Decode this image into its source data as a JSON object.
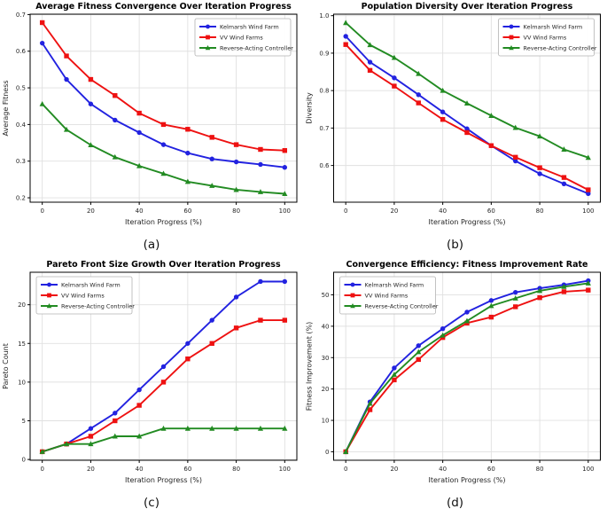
{
  "style": {
    "background": "#ffffff",
    "grid_color": "#e0e0e0",
    "spine_color": "#000000",
    "tick_text_color": "#262626",
    "title_color": "#000000",
    "legend_border": "#b3b3b3",
    "legend_background": "#ffffff"
  },
  "series_colors": {
    "kelmarsh": "#2222e0",
    "vv": "#ee1111",
    "reverse_acting": "#228b22"
  },
  "chart_data": [
    {
      "type": "line",
      "caption": "(a)",
      "title": "Average Fitness Convergence Over Iteration Progress",
      "xlabel": "Iteration Progress (%)",
      "ylabel": "Average Fitness",
      "xlim": [
        -5,
        105
      ],
      "ylim": [
        0.188,
        0.701
      ],
      "xticks": [
        0,
        20,
        40,
        60,
        80,
        100
      ],
      "xtick_labels": [
        "0",
        "20",
        "40",
        "60",
        "80",
        "100"
      ],
      "yticks": [
        0.2,
        0.3,
        0.4,
        0.5,
        0.6,
        0.7
      ],
      "ytick_labels": [
        "0.2",
        "0.3",
        "0.4",
        "0.5",
        "0.6",
        "0.7"
      ],
      "grid": true,
      "legend_position": "upper-right",
      "x": [
        0,
        10,
        20,
        30,
        40,
        50,
        60,
        70,
        80,
        90,
        100
      ],
      "series": [
        {
          "name": "Kelmarsh Wind Farm",
          "color": "#2222e0",
          "marker": "circle",
          "values": [
            0.622,
            0.523,
            0.456,
            0.412,
            0.378,
            0.345,
            0.322,
            0.306,
            0.298,
            0.291,
            0.283
          ]
        },
        {
          "name": "VV Wind Farms",
          "color": "#ee1111",
          "marker": "square",
          "values": [
            0.678,
            0.587,
            0.523,
            0.479,
            0.431,
            0.4,
            0.387,
            0.365,
            0.345,
            0.332,
            0.329
          ]
        },
        {
          "name": "Reverse-Acting Controller",
          "color": "#228b22",
          "marker": "triangle",
          "values": [
            0.456,
            0.386,
            0.344,
            0.311,
            0.287,
            0.266,
            0.244,
            0.233,
            0.222,
            0.216,
            0.211
          ]
        }
      ]
    },
    {
      "type": "line",
      "caption": "(b)",
      "title": "Population Diversity Over Iteration Progress",
      "xlabel": "Iteration Progress (%)",
      "ylabel": "Diversity",
      "xlim": [
        -5,
        105
      ],
      "ylim": [
        0.502,
        1.004
      ],
      "xticks": [
        0,
        20,
        40,
        60,
        80,
        100
      ],
      "xtick_labels": [
        "0",
        "20",
        "40",
        "60",
        "80",
        "100"
      ],
      "yticks": [
        0.6,
        0.7,
        0.8,
        0.9,
        1.0
      ],
      "ytick_labels": [
        "0.6",
        "0.7",
        "0.8",
        "0.9",
        "1.0"
      ],
      "grid": true,
      "legend_position": "upper-right",
      "x": [
        0,
        10,
        20,
        30,
        40,
        50,
        60,
        70,
        80,
        90,
        100
      ],
      "series": [
        {
          "name": "Kelmarsh Wind Farm",
          "color": "#2222e0",
          "marker": "circle",
          "values": [
            0.945,
            0.876,
            0.834,
            0.789,
            0.743,
            0.698,
            0.653,
            0.612,
            0.578,
            0.551,
            0.525
          ]
        },
        {
          "name": "VV Wind Farms",
          "color": "#ee1111",
          "marker": "square",
          "values": [
            0.923,
            0.854,
            0.812,
            0.767,
            0.723,
            0.688,
            0.653,
            0.622,
            0.594,
            0.568,
            0.535
          ]
        },
        {
          "name": "Reverse-Acting Controller",
          "color": "#228b22",
          "marker": "triangle",
          "values": [
            0.981,
            0.922,
            0.888,
            0.845,
            0.8,
            0.766,
            0.733,
            0.701,
            0.678,
            0.643,
            0.621
          ]
        }
      ]
    },
    {
      "type": "line",
      "caption": "(c)",
      "title": "Pareto Front Size Growth Over Iteration Progress",
      "xlabel": "Iteration Progress (%)",
      "ylabel": "Pareto Count",
      "xlim": [
        -5,
        105
      ],
      "ylim": [
        -0.1,
        24.2
      ],
      "xticks": [
        0,
        20,
        40,
        60,
        80,
        100
      ],
      "xtick_labels": [
        "0",
        "20",
        "40",
        "60",
        "80",
        "100"
      ],
      "yticks": [
        0,
        5,
        10,
        15,
        20
      ],
      "ytick_labels": [
        "0",
        "5",
        "10",
        "15",
        "20"
      ],
      "grid": true,
      "legend_position": "upper-left",
      "x": [
        0,
        10,
        20,
        30,
        40,
        50,
        60,
        70,
        80,
        90,
        100
      ],
      "series": [
        {
          "name": "Kelmarsh Wind Farm",
          "color": "#2222e0",
          "marker": "circle",
          "values": [
            1,
            2,
            4,
            6,
            9,
            12,
            15,
            18,
            21,
            23,
            23
          ]
        },
        {
          "name": "VV Wind Farms",
          "color": "#ee1111",
          "marker": "square",
          "values": [
            1,
            2,
            3,
            5,
            7,
            10,
            13,
            15,
            17,
            18,
            18
          ]
        },
        {
          "name": "Reverse-Acting Controller",
          "color": "#228b22",
          "marker": "triangle",
          "values": [
            1,
            2,
            2,
            3,
            3,
            4,
            4,
            4,
            4,
            4,
            4
          ]
        }
      ]
    },
    {
      "type": "line",
      "caption": "(d)",
      "title": "Convergence Efficiency: Fitness Improvement Rate",
      "xlabel": "Iteration Progress (%)",
      "ylabel": "Fitness Improvement (%)",
      "xlim": [
        -5,
        105
      ],
      "ylim": [
        -2.7,
        57.2
      ],
      "xticks": [
        0,
        20,
        40,
        60,
        80,
        100
      ],
      "xtick_labels": [
        "0",
        "20",
        "40",
        "60",
        "80",
        "100"
      ],
      "yticks": [
        0,
        10,
        20,
        30,
        40,
        50
      ],
      "ytick_labels": [
        "0",
        "10",
        "20",
        "30",
        "40",
        "50"
      ],
      "grid": true,
      "legend_position": "upper-left",
      "x": [
        0,
        10,
        20,
        30,
        40,
        50,
        60,
        70,
        80,
        90,
        100
      ],
      "series": [
        {
          "name": "Kelmarsh Wind Farm",
          "color": "#2222e0",
          "marker": "circle",
          "values": [
            0,
            15.9,
            26.7,
            33.8,
            39.2,
            44.5,
            48.2,
            50.8,
            52.1,
            53.2,
            54.5
          ]
        },
        {
          "name": "VV Wind Farms",
          "color": "#ee1111",
          "marker": "square",
          "values": [
            0,
            13.4,
            22.9,
            29.4,
            36.4,
            41.0,
            42.9,
            46.2,
            49.1,
            51.0,
            51.5
          ]
        },
        {
          "name": "Reverse-Acting Controller",
          "color": "#228b22",
          "marker": "triangle",
          "values": [
            0,
            15.4,
            24.6,
            31.8,
            37.1,
            41.7,
            46.5,
            48.9,
            51.3,
            52.6,
            53.7
          ]
        }
      ]
    }
  ]
}
